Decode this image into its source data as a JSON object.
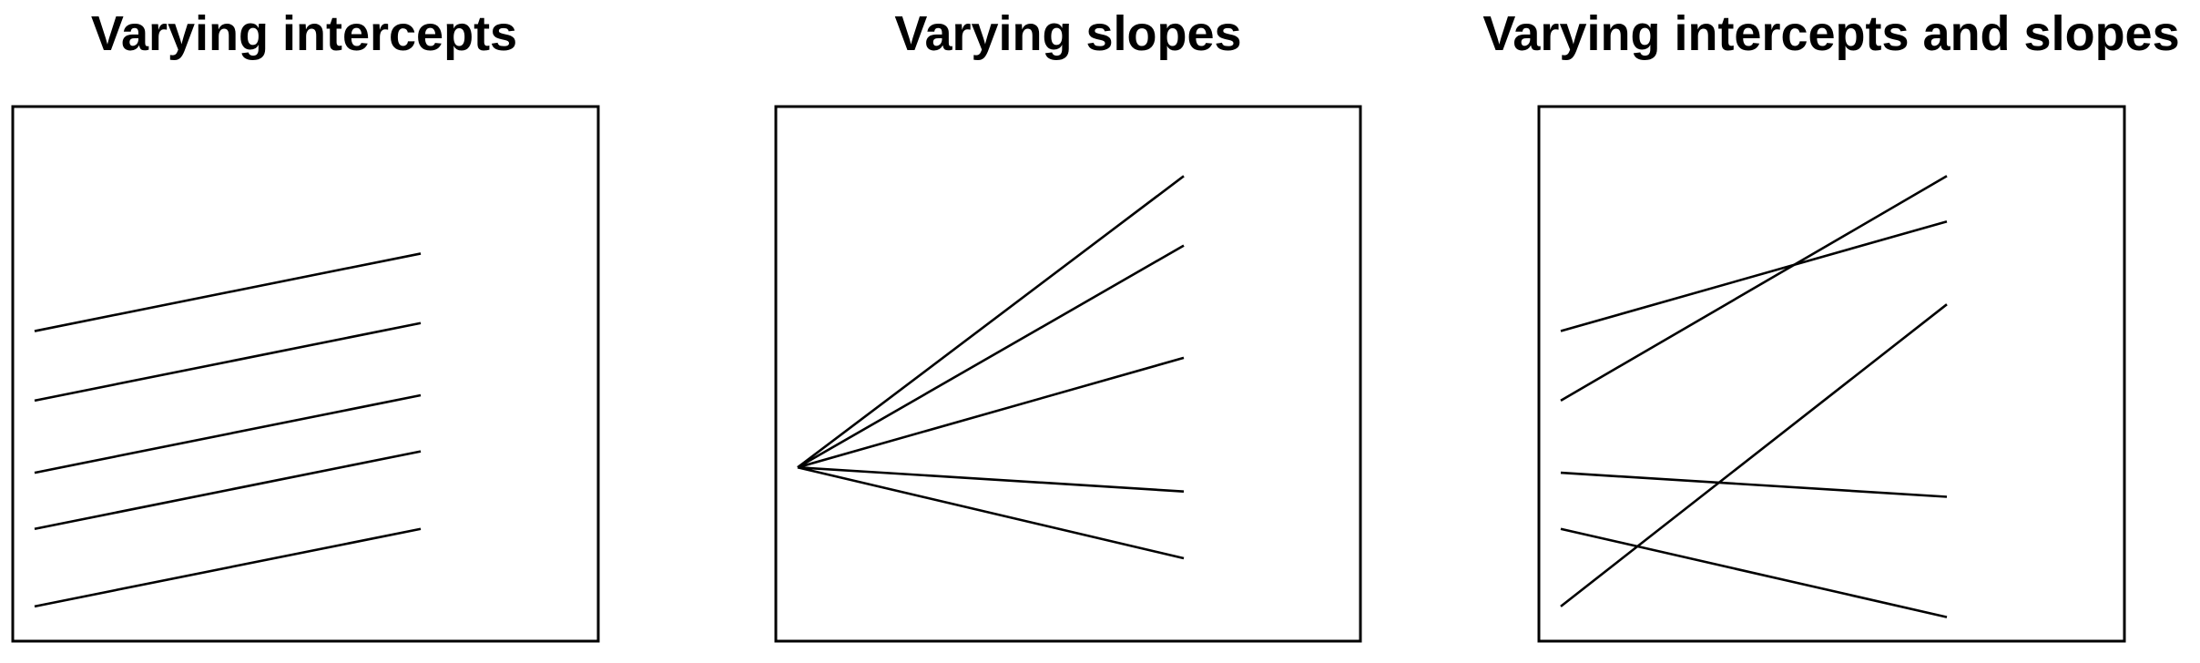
{
  "chart_data": [
    {
      "type": "line",
      "title": "Varying intercepts",
      "xlim": [
        0,
        1.5
      ],
      "ylim": [
        0,
        10
      ],
      "series": [
        {
          "x": [
            0,
            1
          ],
          "values": [
            0.65,
            2.1
          ]
        },
        {
          "x": [
            0,
            1
          ],
          "values": [
            2.1,
            3.55
          ]
        },
        {
          "x": [
            0,
            1
          ],
          "values": [
            3.15,
            4.6
          ]
        },
        {
          "x": [
            0,
            1
          ],
          "values": [
            4.5,
            5.95
          ]
        },
        {
          "x": [
            0,
            1
          ],
          "values": [
            5.8,
            7.25
          ]
        }
      ]
    },
    {
      "type": "line",
      "title": "Varying slopes",
      "xlim": [
        0,
        1.5
      ],
      "ylim": [
        0,
        10
      ],
      "series": [
        {
          "x": [
            0,
            1
          ],
          "values": [
            3.25,
            1.55
          ]
        },
        {
          "x": [
            0,
            1
          ],
          "values": [
            3.25,
            2.8
          ]
        },
        {
          "x": [
            0,
            1
          ],
          "values": [
            3.25,
            5.3
          ]
        },
        {
          "x": [
            0,
            1
          ],
          "values": [
            3.25,
            7.4
          ]
        },
        {
          "x": [
            0,
            1
          ],
          "values": [
            3.25,
            8.7
          ]
        }
      ]
    },
    {
      "type": "line",
      "title": "Varying intercepts and slopes",
      "xlim": [
        0,
        1.5
      ],
      "ylim": [
        0,
        10
      ],
      "series": [
        {
          "x": [
            0,
            1
          ],
          "values": [
            0.65,
            6.3
          ]
        },
        {
          "x": [
            0,
            1
          ],
          "values": [
            2.1,
            0.45
          ]
        },
        {
          "x": [
            0,
            1
          ],
          "values": [
            3.15,
            2.7
          ]
        },
        {
          "x": [
            0,
            1
          ],
          "values": [
            4.5,
            8.7
          ]
        },
        {
          "x": [
            0,
            1
          ],
          "values": [
            5.8,
            7.85
          ]
        }
      ]
    }
  ]
}
